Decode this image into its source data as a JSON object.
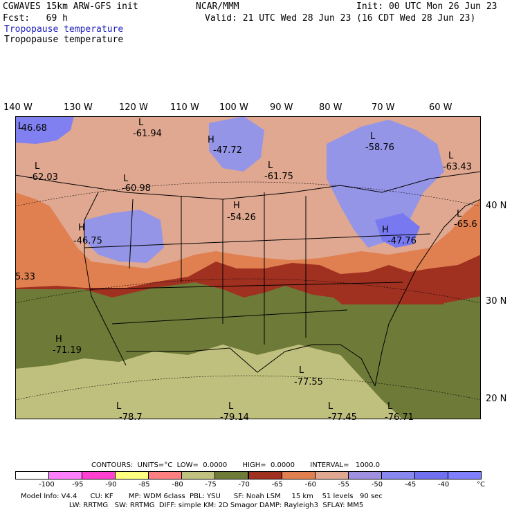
{
  "header": {
    "title_left": "CGWAVES 15km ARW-GFS init",
    "fcst": "Fcst:   69 h",
    "field_blue": "Tropopause temperature",
    "field_black": "Tropopause temperature",
    "center": "NCAR/MMM",
    "init": "Init: 00 UTC Mon 26 Jun 23",
    "valid": "Valid: 21 UTC Wed 28 Jun 23 (16 CDT Wed 28 Jun 23)"
  },
  "lon_labels": [
    "140 W",
    "130 W",
    "120 W",
    "110 W",
    "100 W",
    "90 W",
    "80 W",
    "70 W",
    "60 W"
  ],
  "lat_labels": [
    "40 N",
    "30 N",
    "20 N"
  ],
  "map_labels": {
    "v1": "-46.68",
    "v2": "-61.94",
    "v3": "-47.72",
    "v4": "-58.76",
    "v5": "-63.43",
    "v6": "-62.03",
    "v7": "-60.98",
    "v8": "-61.75",
    "v9": "-54.26",
    "v10": "-65.6",
    "v11": "-46.75",
    "v12": "-47.76",
    "v13": "5.33",
    "v14": "-71.19",
    "v15": "-77.55",
    "v16": "-78.7",
    "v17": "-79.14",
    "v18": "-77.45",
    "v19": "-76.71",
    "H": "H",
    "L": "L"
  },
  "contours_line": "CONTOURS:  UNITS=°C  LOW=  0.0000       HIGH=  0.0000       INTERVAL=   1000.0",
  "colorbar": {
    "colors": [
      "#ffffff",
      "#ff80ff",
      "#ff40d0",
      "#ffff80",
      "#ff8080",
      "#c0c080",
      "#6e7a38",
      "#a03020",
      "#e08050",
      "#e0a890",
      "#a090e0",
      "#8888f0",
      "#7070f0",
      "#8080ff"
    ],
    "ticks": [
      "-100",
      "-95",
      "-90",
      "-85",
      "-80",
      "-75",
      "-70",
      "-65",
      "-60",
      "-55",
      "-50",
      "-45",
      "-40",
      "°C"
    ]
  },
  "footer": {
    "line1": "Model Info: V4.4      CU: KF       MP: WDM 6class  PBL: YSU      SF: Noah LSM     15 km    51 levels   90 sec",
    "line2": "                      LW: RRTMG   SW: RRTMG  DIFF: simple KM: 2D Smagor DAMP: Rayleigh3  SFLAY: MM5"
  }
}
